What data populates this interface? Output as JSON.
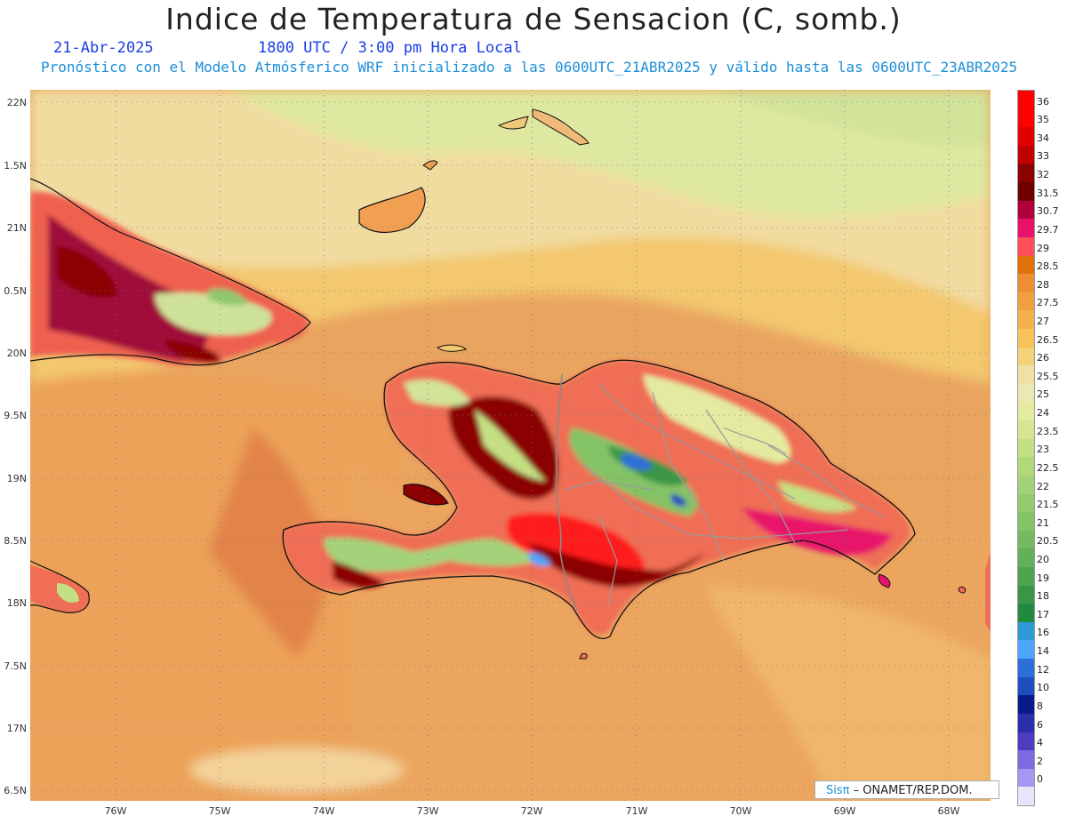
{
  "header": {
    "title": "Indice de Temperatura de Sensacion (C, somb.)",
    "date": "21-Abr-2025",
    "time": "1800 UTC / 3:00 pm Hora Local",
    "model_line": "Pronóstico con el Modelo Atmósferico WRF inicializado a las 0600UTC_21ABR2025 y válido hasta las  0600UTC_23ABR2025"
  },
  "map": {
    "lat_labels": [
      "22N",
      "1.5N",
      "21N",
      "0.5N",
      "20N",
      "9.5N",
      "19N",
      "8.5N",
      "18N",
      "7.5N",
      "17N",
      "6.5N"
    ],
    "lon_labels": [
      "76W",
      "75W",
      "74W",
      "73W",
      "72W",
      "71W",
      "70W",
      "69W",
      "68W"
    ],
    "regions": [
      "Cuba (east)",
      "Great Inagua",
      "Haiti",
      "Dominican Republic",
      "Jamaica (east tip)",
      "Turks and Caicos"
    ]
  },
  "legend": {
    "labels": [
      "36",
      "35",
      "34",
      "33",
      "32",
      "31.5",
      "30.7",
      "29.7",
      "29",
      "28.5",
      "28",
      "27.5",
      "27",
      "26.5",
      "26",
      "25.5",
      "25",
      "24",
      "23.5",
      "23",
      "22.5",
      "22",
      "21.5",
      "21",
      "20.5",
      "20",
      "19",
      "18",
      "17",
      "16",
      "14",
      "12",
      "10",
      "8",
      "6",
      "4",
      "2",
      "0"
    ],
    "colors": [
      "#ff0000",
      "#e00000",
      "#c00000",
      "#8b0000",
      "#6e0000",
      "#b0003a",
      "#e8126a",
      "#ff4f5a",
      "#e07008",
      "#ee8e34",
      "#f0a042",
      "#f3b24e",
      "#f5c25c",
      "#f5d27a",
      "#f1e0a6",
      "#eae8b4",
      "#e4eba0",
      "#d6e690",
      "#c4df84",
      "#b2d87a",
      "#a4d27a",
      "#93ca6e",
      "#84c266",
      "#74ba60",
      "#63b05a",
      "#4fa44e",
      "#3a9646",
      "#1f8a40",
      "#2e9bd6",
      "#4aa6ff",
      "#2d6fd8",
      "#1f4fbf",
      "#0a1a8a",
      "#2b2ea8",
      "#4b3cc0",
      "#7b6ae0",
      "#a596f0",
      "#e8e4fa"
    ],
    "top_cell_color": "#ff0000"
  },
  "credit": {
    "brand": "Sisπ",
    "text": " – ONAMET/REP.DOM."
  }
}
